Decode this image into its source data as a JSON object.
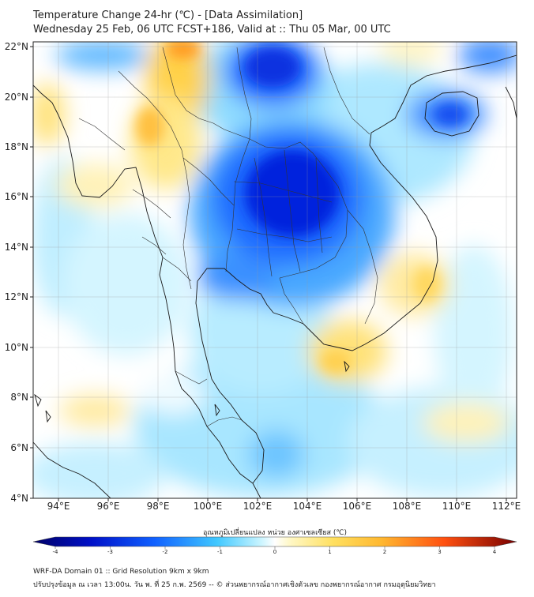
{
  "header": {
    "title": "Temperature Change 24-hr (℃) - [Data Assimilation]",
    "subtitle": "Wednesday 25 Feb, 06 UTC FCST+186, Valid at :: Thu 05 Mar, 00 UTC"
  },
  "map": {
    "lon_ticks": [
      "94°E",
      "96°E",
      "98°E",
      "100°E",
      "102°E",
      "104°E",
      "106°E",
      "108°E",
      "110°E",
      "112°E"
    ],
    "lat_ticks": [
      "22°N",
      "20°N",
      "18°N",
      "16°N",
      "14°N",
      "12°N",
      "10°N",
      "8°N",
      "6°N",
      "4°N"
    ],
    "lon_range": [
      93,
      112.5
    ],
    "lat_range": [
      4,
      22.2
    ],
    "field_features": [
      {
        "lon": 103.2,
        "lat": 15.2,
        "value": -3.5
      },
      {
        "lon": 102.5,
        "lat": 21.8,
        "value": -3.0
      },
      {
        "lon": 110.2,
        "lat": 19.4,
        "value": -2.5
      },
      {
        "lon": 111.5,
        "lat": 21.5,
        "value": -2.2
      },
      {
        "lon": 101.5,
        "lat": 12.7,
        "value": -2.0
      },
      {
        "lon": 100.0,
        "lat": 20.0,
        "value": -1.8
      },
      {
        "lon": 102.5,
        "lat": 6.0,
        "value": -1.5
      },
      {
        "lon": 99.0,
        "lat": 22.0,
        "value": 2.8
      },
      {
        "lon": 98.2,
        "lat": 19.5,
        "value": 1.8
      },
      {
        "lon": 93.5,
        "lat": 19.5,
        "value": 1.2
      },
      {
        "lon": 95.5,
        "lat": 16.6,
        "value": 0.9
      },
      {
        "lon": 105.3,
        "lat": 10.0,
        "value": 1.4
      },
      {
        "lon": 106.8,
        "lat": 12.3,
        "value": 1.0
      },
      {
        "lon": 96.0,
        "lat": 7.3,
        "value": 1.0
      },
      {
        "lon": 109.2,
        "lat": 7.2,
        "value": 0.8
      }
    ]
  },
  "colorbar": {
    "title": "อุณหภูมิเปลี่ยนแปลง หน่วย องศาเซลเซียส (℃)",
    "ticks": [
      "-4",
      "-3",
      "-2",
      "-1",
      "0",
      "1",
      "2",
      "3",
      "4"
    ],
    "range": [
      -4,
      4
    ]
  },
  "footer": {
    "line1": "WRF-DA Domain 01 :: Grid Resolution 9km x 9km",
    "line2": "ปรับปรุงข้อมูล ณ เวลา 13:00น. วัน พ. ที่ 25 ก.พ. 2569 -- © ส่วนพยากรณ์อากาศเชิงตัวเลข กองพยากรณ์อากาศ กรมอุตุนิยมวิทยา"
  }
}
